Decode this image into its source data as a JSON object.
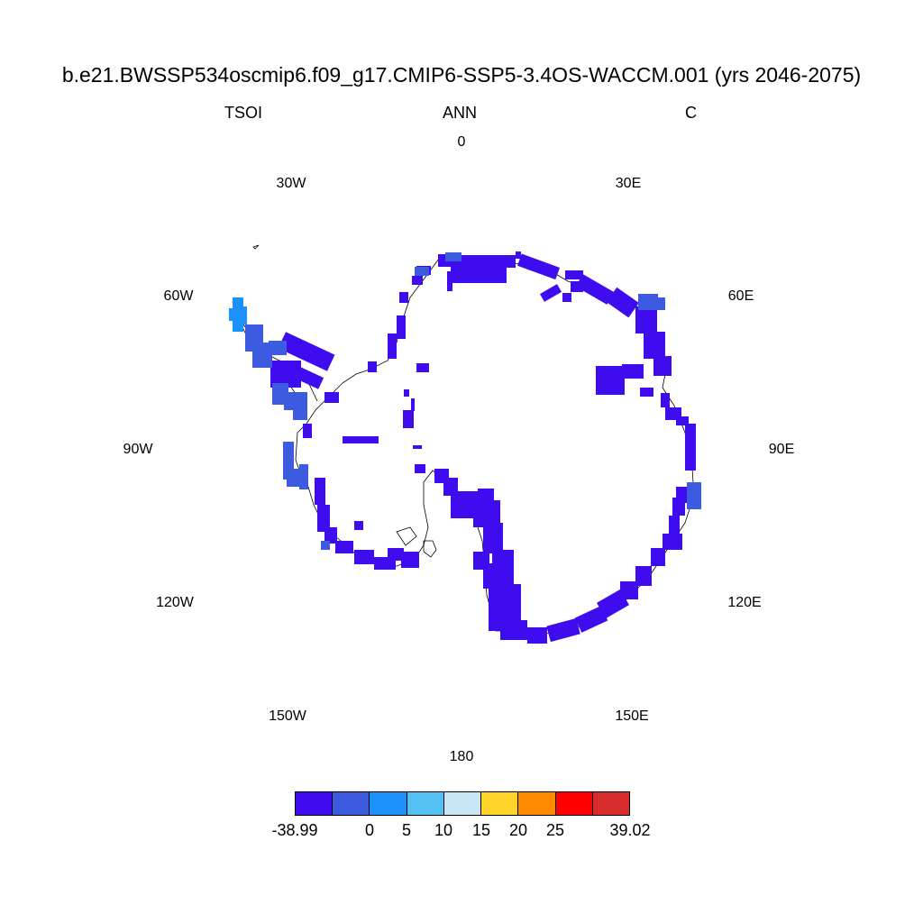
{
  "title": "b.e21.BWSSP534oscmip6.f09_g17.CMIP6-SSP5-3.4OS-WACCM.001 (yrs 2046-2075)",
  "left_label": "TSOI",
  "center_label": "ANN",
  "right_label": "C",
  "longitude_labels": {
    "lon_0": "0",
    "lon_30e": "30E",
    "lon_60e": "60E",
    "lon_90e": "90E",
    "lon_120e": "120E",
    "lon_150e": "150E",
    "lon_180": "180",
    "lon_150w": "150W",
    "lon_120w": "120W",
    "lon_90w": "90W",
    "lon_60w": "60W",
    "lon_30w": "30W"
  },
  "colorbar": {
    "colors": [
      "#3f0cf0",
      "#3c5be0",
      "#1b92fb",
      "#53c1f4",
      "#c8e6f6",
      "#ffd42a",
      "#ff8a00",
      "#ff0000",
      "#d72a2a"
    ],
    "labels": {
      "min": "-38.99",
      "l0": "0",
      "l5": "5",
      "l10": "10",
      "l15": "15",
      "l20": "20",
      "l25": "25",
      "max": "39.02"
    }
  },
  "map": {
    "projection": "south-polar-stereographic",
    "field_color_main": "#3f0cf0",
    "field_color_secondary": "#3c5be0",
    "field_color_tertiary": "#1b92fb",
    "coastline_color": "#000000"
  }
}
